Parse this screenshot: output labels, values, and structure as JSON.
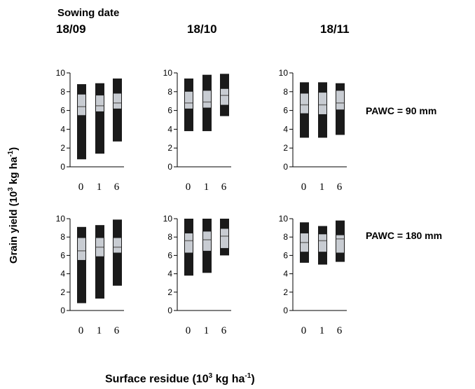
{
  "header": {
    "title": "Sowing date",
    "dates": [
      "18/09",
      "18/10",
      "18/11"
    ]
  },
  "rows": [
    "PAWC = 90 mm",
    "PAWC = 180 mm"
  ],
  "axes": {
    "ylabel_main": "Grain yield (10",
    "ylabel_sup": "3",
    "ylabel_end": " kg ha",
    "ylabel_sup2": "-1",
    "ylabel_close": ")",
    "xlabel_main": "Surface residue (10",
    "xlabel_sup": "3",
    "xlabel_end": " kg ha",
    "xlabel_sup2": "-1",
    "xlabel_close": ")"
  },
  "colors": {
    "range_bar": "#1a1a1a",
    "iqr_box": "#c8ccd2",
    "median": "#6e6e6e"
  },
  "chart_data": {
    "type": "box",
    "categories": [
      "0",
      "1",
      "6"
    ],
    "y_ticks": [
      "0",
      "2",
      "4",
      "6",
      "8",
      "10"
    ],
    "ylim": [
      0,
      10
    ],
    "panels": [
      {
        "pawc": "PAWC = 90 mm",
        "sowing": "18/09",
        "boxes": [
          {
            "min": 0.8,
            "q1": 5.5,
            "median": 6.4,
            "q3": 7.7,
            "max": 8.8
          },
          {
            "min": 1.4,
            "q1": 5.9,
            "median": 6.5,
            "q3": 7.6,
            "max": 8.9
          },
          {
            "min": 2.7,
            "q1": 6.2,
            "median": 6.8,
            "q3": 7.8,
            "max": 9.4
          }
        ]
      },
      {
        "pawc": "PAWC = 90 mm",
        "sowing": "18/10",
        "boxes": [
          {
            "min": 3.8,
            "q1": 6.2,
            "median": 6.8,
            "q3": 8.0,
            "max": 9.4
          },
          {
            "min": 3.8,
            "q1": 6.3,
            "median": 6.9,
            "q3": 8.1,
            "max": 9.8
          },
          {
            "min": 5.4,
            "q1": 6.6,
            "median": 7.6,
            "q3": 8.3,
            "max": 9.9
          }
        ]
      },
      {
        "pawc": "PAWC = 90 mm",
        "sowing": "18/11",
        "boxes": [
          {
            "min": 3.1,
            "q1": 5.7,
            "median": 6.6,
            "q3": 7.8,
            "max": 9.0
          },
          {
            "min": 3.1,
            "q1": 5.6,
            "median": 6.6,
            "q3": 7.9,
            "max": 9.0
          },
          {
            "min": 3.4,
            "q1": 6.1,
            "median": 6.8,
            "q3": 8.1,
            "max": 8.9
          }
        ]
      },
      {
        "pawc": "PAWC = 180 mm",
        "sowing": "18/09",
        "boxes": [
          {
            "min": 0.8,
            "q1": 5.5,
            "median": 6.5,
            "q3": 7.9,
            "max": 9.1
          },
          {
            "min": 1.3,
            "q1": 5.9,
            "median": 6.9,
            "q3": 7.9,
            "max": 9.3
          },
          {
            "min": 2.7,
            "q1": 6.3,
            "median": 6.9,
            "q3": 7.9,
            "max": 9.9
          }
        ]
      },
      {
        "pawc": "PAWC = 180 mm",
        "sowing": "18/10",
        "boxes": [
          {
            "min": 3.8,
            "q1": 6.3,
            "median": 7.6,
            "q3": 8.4,
            "max": 10.0
          },
          {
            "min": 4.1,
            "q1": 6.5,
            "median": 7.7,
            "q3": 8.6,
            "max": 10.0
          },
          {
            "min": 6.0,
            "q1": 6.8,
            "median": 8.1,
            "q3": 8.9,
            "max": 10.0
          }
        ]
      },
      {
        "pawc": "PAWC = 180 mm",
        "sowing": "18/11",
        "boxes": [
          {
            "min": 5.2,
            "q1": 6.4,
            "median": 7.4,
            "q3": 8.4,
            "max": 9.6
          },
          {
            "min": 5.0,
            "q1": 6.4,
            "median": 7.6,
            "q3": 8.3,
            "max": 9.2
          },
          {
            "min": 5.3,
            "q1": 6.3,
            "median": 7.8,
            "q3": 8.2,
            "max": 9.8
          }
        ]
      }
    ]
  }
}
